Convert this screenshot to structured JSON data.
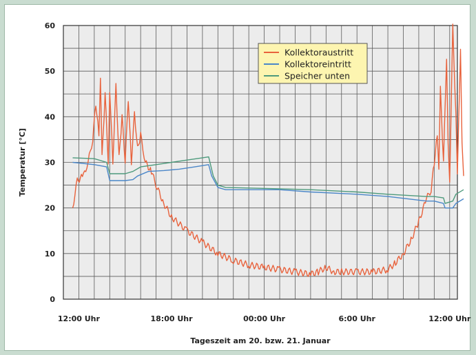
{
  "chart_data": {
    "type": "line",
    "title": "",
    "xlabel": "Tageszeit am 20. bzw. 21. Januar",
    "ylabel": "Temperatur [°C]",
    "ylim": [
      0,
      60
    ],
    "yticks": [
      0,
      10,
      20,
      30,
      40,
      50,
      60
    ],
    "xlim_hours": [
      11,
      36.5
    ],
    "x_unit": "hours since 00:00 Uhr on 20 January",
    "xticks": [
      {
        "hour": 12,
        "label": "12:00 Uhr"
      },
      {
        "hour": 18,
        "label": "18:00 Uhr"
      },
      {
        "hour": 24,
        "label": "00:00 Uhr"
      },
      {
        "hour": 30,
        "label": "6:00 Uhr"
      },
      {
        "hour": 36,
        "label": "12:00 Uhr"
      }
    ],
    "grid": true,
    "legend_position": "top-right",
    "series": [
      {
        "name": "Kollektoraustritt",
        "color": "#e8623c",
        "jagged": true,
        "points": [
          [
            11.6,
            20
          ],
          [
            11.9,
            26
          ],
          [
            12.3,
            27
          ],
          [
            12.6,
            30
          ],
          [
            12.9,
            35
          ],
          [
            13.1,
            43
          ],
          [
            13.3,
            36
          ],
          [
            13.4,
            48
          ],
          [
            13.5,
            31
          ],
          [
            13.7,
            45
          ],
          [
            13.9,
            30
          ],
          [
            14.0,
            46
          ],
          [
            14.2,
            30
          ],
          [
            14.4,
            47
          ],
          [
            14.6,
            31
          ],
          [
            14.8,
            40
          ],
          [
            15.0,
            30
          ],
          [
            15.2,
            44
          ],
          [
            15.4,
            30
          ],
          [
            15.6,
            41
          ],
          [
            15.8,
            33
          ],
          [
            16.0,
            36
          ],
          [
            16.3,
            30
          ],
          [
            16.7,
            28
          ],
          [
            17.0,
            25
          ],
          [
            17.5,
            21
          ],
          [
            18.0,
            18
          ],
          [
            19.0,
            15
          ],
          [
            20.0,
            12.5
          ],
          [
            21.0,
            10
          ],
          [
            22.0,
            8.5
          ],
          [
            23.0,
            7.5
          ],
          [
            24.0,
            7
          ],
          [
            25.0,
            6.5
          ],
          [
            26.0,
            6
          ],
          [
            27.0,
            5.5
          ],
          [
            27.5,
            6
          ],
          [
            28.0,
            7
          ],
          [
            28.5,
            6
          ],
          [
            29.0,
            6
          ],
          [
            30.0,
            6
          ],
          [
            31.0,
            6
          ],
          [
            32.0,
            6.5
          ],
          [
            32.5,
            8
          ],
          [
            33.0,
            10
          ],
          [
            33.5,
            13
          ],
          [
            34.0,
            17
          ],
          [
            34.5,
            22
          ],
          [
            34.8,
            24
          ],
          [
            35.0,
            30
          ],
          [
            35.2,
            36
          ],
          [
            35.3,
            28
          ],
          [
            35.4,
            46
          ],
          [
            35.6,
            30
          ],
          [
            35.8,
            53
          ],
          [
            35.9,
            35
          ],
          [
            36.0,
            26
          ],
          [
            36.2,
            60
          ],
          [
            36.4,
            40
          ],
          [
            36.5,
            27
          ],
          [
            36.7,
            55
          ],
          [
            36.8,
            35
          ],
          [
            36.9,
            27
          ]
        ]
      },
      {
        "name": "Kollektoreintritt",
        "color": "#4a86c8",
        "jagged": false,
        "points": [
          [
            11.6,
            30
          ],
          [
            13.0,
            29.5
          ],
          [
            13.8,
            29
          ],
          [
            14.0,
            26
          ],
          [
            15.0,
            26
          ],
          [
            15.5,
            26.2
          ],
          [
            15.8,
            27
          ],
          [
            16.5,
            28
          ],
          [
            17.5,
            28.2
          ],
          [
            18.5,
            28.5
          ],
          [
            19.5,
            29
          ],
          [
            20.4,
            29.5
          ],
          [
            20.6,
            27
          ],
          [
            21.0,
            24.5
          ],
          [
            21.5,
            24
          ],
          [
            25.0,
            24
          ],
          [
            27.0,
            23.5
          ],
          [
            30.0,
            23
          ],
          [
            32.0,
            22.5
          ],
          [
            34.5,
            21.5
          ],
          [
            35.0,
            21.5
          ],
          [
            35.6,
            21
          ],
          [
            35.7,
            20
          ],
          [
            36.2,
            20
          ],
          [
            36.4,
            21
          ],
          [
            36.9,
            22
          ]
        ]
      },
      {
        "name": "Speicher unten",
        "color": "#4d9a7c",
        "jagged": false,
        "points": [
          [
            11.6,
            31
          ],
          [
            13.0,
            30.8
          ],
          [
            13.8,
            30
          ],
          [
            14.0,
            27.5
          ],
          [
            15.0,
            27.5
          ],
          [
            15.5,
            28
          ],
          [
            16.0,
            29
          ],
          [
            17.0,
            29.5
          ],
          [
            18.0,
            30
          ],
          [
            19.0,
            30.5
          ],
          [
            20.0,
            31
          ],
          [
            20.4,
            31.2
          ],
          [
            20.7,
            27
          ],
          [
            21.0,
            25
          ],
          [
            21.5,
            24.5
          ],
          [
            25.0,
            24.2
          ],
          [
            27.0,
            24
          ],
          [
            30.0,
            23.5
          ],
          [
            32.0,
            23
          ],
          [
            34.5,
            22.5
          ],
          [
            35.0,
            22.5
          ],
          [
            35.6,
            22.2
          ],
          [
            35.7,
            21
          ],
          [
            36.2,
            21.5
          ],
          [
            36.4,
            23
          ],
          [
            36.9,
            24
          ]
        ]
      }
    ]
  }
}
